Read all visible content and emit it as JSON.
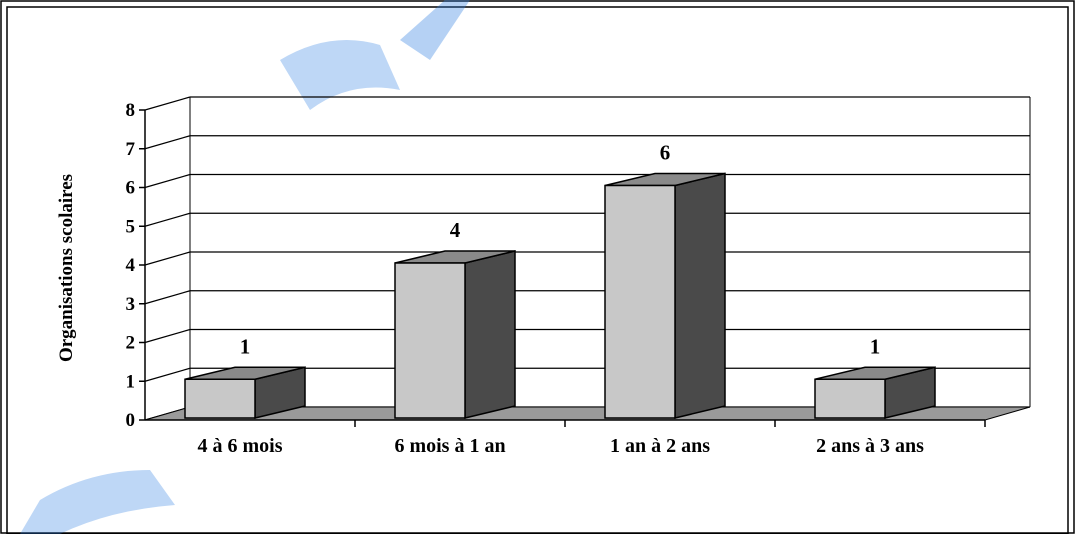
{
  "chart_data": {
    "type": "bar",
    "title": "",
    "xlabel": "",
    "ylabel": "Organisations scolaires",
    "categories": [
      "4 à 6 mois",
      "6 mois à 1 an",
      "1 an à 2 ans",
      "2 ans à 3 ans"
    ],
    "values": [
      1,
      4,
      6,
      1
    ],
    "data_labels": [
      "1",
      "4",
      "6",
      "1"
    ],
    "ylim": [
      0,
      8
    ],
    "yticks": [
      "0",
      "1",
      "2",
      "3",
      "4",
      "5",
      "6",
      "7",
      "8"
    ],
    "grid": true,
    "legend": "none",
    "style": "3d-column",
    "colors": {
      "bar_front": "#c8c8c8",
      "bar_side": "#4a4a4a",
      "bar_top": "#8a8a8a",
      "floor": "#9a9a9a",
      "watermark": "#2f7fe0"
    }
  }
}
